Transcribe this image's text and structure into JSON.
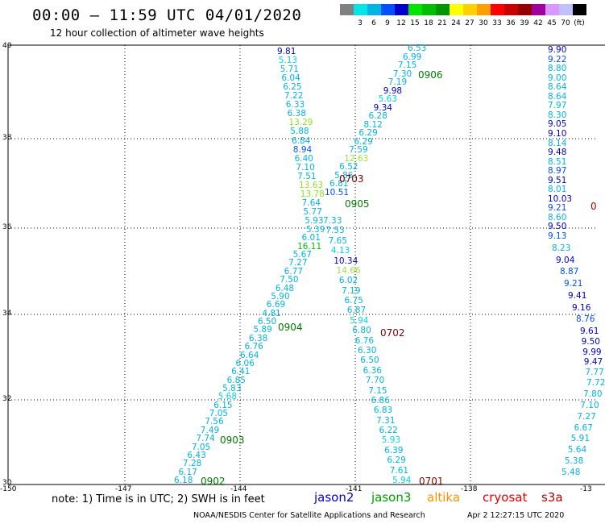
{
  "header": {
    "title": "00:00 – 11:59 UTC 04/01/2020",
    "subtitle": "12 hour collection of altimeter wave heights"
  },
  "legend": {
    "swatches": [
      {
        "color": "#808080",
        "label": ""
      },
      {
        "color": "#00e6e6",
        "label": "3"
      },
      {
        "color": "#00b4e6",
        "label": "6"
      },
      {
        "color": "#0050ff",
        "label": "9"
      },
      {
        "color": "#0000c8",
        "label": "12"
      },
      {
        "color": "#00e600",
        "label": "15"
      },
      {
        "color": "#00c000",
        "label": "18"
      },
      {
        "color": "#009600",
        "label": "21"
      },
      {
        "color": "#ffff00",
        "label": "24"
      },
      {
        "color": "#ffd000",
        "label": "27"
      },
      {
        "color": "#ffa000",
        "label": "30"
      },
      {
        "color": "#ff0000",
        "label": "33"
      },
      {
        "color": "#c80000",
        "label": "36"
      },
      {
        "color": "#960000",
        "label": "39"
      },
      {
        "color": "#a000a0",
        "label": "42"
      },
      {
        "color": "#d898ff",
        "label": "45"
      },
      {
        "color": "#c0c0ff",
        "label": "70"
      },
      {
        "color": "#000000",
        "label": "(ft)"
      }
    ]
  },
  "axes": {
    "lat_ticks": [
      "40",
      "38",
      "36",
      "34",
      "32",
      "30"
    ],
    "lon_ticks": [
      "-150",
      "-147",
      "-144",
      "-141",
      "-138",
      "-13"
    ]
  },
  "pass_labels": [
    {
      "text": "0906",
      "color": "#007a00"
    },
    {
      "text": "0703",
      "color": "#800000"
    },
    {
      "text": "0905",
      "color": "#007a00"
    },
    {
      "text": "0904",
      "color": "#007a00"
    },
    {
      "text": "0702",
      "color": "#800000"
    },
    {
      "text": "0903",
      "color": "#007a00"
    },
    {
      "text": "0902",
      "color": "#007a00"
    },
    {
      "text": "0701",
      "color": "#800000"
    },
    {
      "text": "0",
      "color": "#c00000"
    }
  ],
  "tracks": {
    "track_a": [
      "9.81",
      "5.13",
      "5.71",
      "6.04",
      "6.25",
      "7.22",
      "6.33",
      "6.38",
      "13.29",
      "5.88",
      "6.84",
      "8.94",
      "6.40",
      "7.10",
      "7.51",
      "13.63",
      "13.78",
      "7.64",
      "5.77",
      "5.93",
      "5.39",
      "6.01",
      "16.11",
      "5.67",
      "7.27",
      "6.77",
      "7.50",
      "6.48",
      "5.90",
      "6.69",
      "4.81",
      "6.50",
      "5.89",
      "6.38",
      "6.76",
      "6.64",
      "6.06",
      "6.41",
      "6.85",
      "5.83",
      "5.68",
      "6.15",
      "7.05",
      "7.56",
      "7.49",
      "7.74",
      "7.05",
      "6.43",
      "7.28",
      "6.17",
      "6.18"
    ],
    "track_a_colors": [
      "#0000c8",
      "#00d8e6",
      "#00b4e6",
      "#00b4e6",
      "#00b4e6",
      "#00b4e6",
      "#00b4e6",
      "#00b4e6",
      "#90e020",
      "#00b4e6",
      "#00b4e6",
      "#0050ff",
      "#00b4e6",
      "#00b4e6",
      "#00b4e6",
      "#90e020",
      "#90e020",
      "#00b4e6",
      "#00b4e6",
      "#00b4e6",
      "#00b4e6",
      "#00b4e6",
      "#00c000",
      "#00b4e6",
      "#00b4e6",
      "#00b4e6",
      "#00b4e6",
      "#00b4e6",
      "#00b4e6",
      "#00b4e6",
      "#00b4e6",
      "#00b4e6",
      "#00b4e6",
      "#00b4e6",
      "#00b4e6",
      "#00b4e6",
      "#00b4e6",
      "#00b4e6",
      "#00b4e6",
      "#00b4e6",
      "#00d8e6",
      "#00b4e6",
      "#00b4e6",
      "#00b4e6",
      "#00b4e6",
      "#00b4e6",
      "#00b4e6",
      "#00b4e6",
      "#00b4e6",
      "#00b4e6",
      "#00b4e6"
    ],
    "track_b": [
      "6.53",
      "6.99",
      "7.15",
      "7.30",
      "7.19",
      "9.98",
      "5.63",
      "9.34",
      "6.28",
      "8.12",
      "6.29",
      "6.29",
      "7.59",
      "12.63",
      "6.52",
      "5.86",
      "6.81",
      "10.51"
    ],
    "track_b_colors": [
      "#00b4e6",
      "#00b4e6",
      "#00b4e6",
      "#00b4e6",
      "#00b4e6",
      "#0000c8",
      "#00d8e6",
      "#0000c8",
      "#00b4e6",
      "#00b4e6",
      "#00b4e6",
      "#00b4e6",
      "#00b4e6",
      "#a0e040",
      "#00b4e6",
      "#00b4e6",
      "#00b4e6",
      "#0050ff"
    ],
    "track_c": [
      "7.33",
      "7.53",
      "7.65",
      "4.13",
      "10.34",
      "14.66",
      "6.02",
      "7.19",
      "6.75",
      "6.87",
      "5.94",
      "6.80",
      "6.76",
      "6.30",
      "6.50",
      "6.36",
      "7.70",
      "7.15",
      "6.86",
      "6.83",
      "7.31",
      "6.22",
      "5.93",
      "6.39",
      "6.29",
      "7.61",
      "5.94"
    ],
    "track_c_colors": [
      "#00b4e6",
      "#00b4e6",
      "#00b4e6",
      "#00d8e6",
      "#0000c8",
      "#a0e040",
      "#00b4e6",
      "#00b4e6",
      "#00b4e6",
      "#00b4e6",
      "#00d8e6",
      "#00b4e6",
      "#00b4e6",
      "#00b4e6",
      "#00b4e6",
      "#00b4e6",
      "#00b4e6",
      "#00b4e6",
      "#00b4e6",
      "#00b4e6",
      "#00b4e6",
      "#00b4e6",
      "#00d8e6",
      "#00b4e6",
      "#00b4e6",
      "#00b4e6",
      "#00d8e6"
    ],
    "track_d": [
      "9.90",
      "9.22",
      "8.80",
      "9.00",
      "8.64",
      "8.64",
      "7.97",
      "8.30",
      "9.05",
      "9.10",
      "8.14",
      "9.48",
      "8.51",
      "8.97",
      "9.51",
      "8.01",
      "10.03",
      "9.21",
      "8.60",
      "9.50",
      "9.13",
      "8.23",
      "9.04",
      "8.87",
      "9.21",
      "9.41",
      "9.16",
      "8.76",
      "9.61",
      "9.50",
      "9.99",
      "9.47",
      "7.77",
      "7.72",
      "7.80",
      "7.10",
      "7.27",
      "6.67",
      "5.91",
      "5.64",
      "5.38",
      "5.48"
    ],
    "track_d_colors": [
      "#0000c8",
      "#0050ff",
      "#00b4e6",
      "#00b4e6",
      "#00b4e6",
      "#00b4e6",
      "#00b4e6",
      "#00b4e6",
      "#0000c8",
      "#0000c8",
      "#00b4e6",
      "#0000c8",
      "#00b4e6",
      "#0050ff",
      "#0000c8",
      "#00b4e6",
      "#0000c8",
      "#0050ff",
      "#00b4e6",
      "#0000c8",
      "#0050ff",
      "#00b4e6",
      "#0000c8",
      "#0050ff",
      "#0050ff",
      "#0000c8",
      "#0000c8",
      "#0050ff",
      "#0000c8",
      "#0000c8",
      "#0000c8",
      "#0000c8",
      "#00b4e6",
      "#00b4e6",
      "#00b4e6",
      "#00b4e6",
      "#00b4e6",
      "#00b4e6",
      "#00b4e6",
      "#00b4e6",
      "#00b4e6",
      "#00b4e6"
    ]
  },
  "footer": {
    "note": "note: 1) Time is in UTC; 2) SWH is in feet",
    "satellites": [
      {
        "name": "jason2",
        "color": "#0000c8"
      },
      {
        "name": "jason3",
        "color": "#00a000"
      },
      {
        "name": "altika",
        "color": "#ff9000"
      },
      {
        "name": "cryosat",
        "color": "#e00000"
      },
      {
        "name": "s3a",
        "color": "#c00000"
      }
    ],
    "credit": "NOAA/NESDIS Center for Satellite Applications and Research",
    "timestamp": "Apr  2 12:27:15 UTC 2020"
  }
}
